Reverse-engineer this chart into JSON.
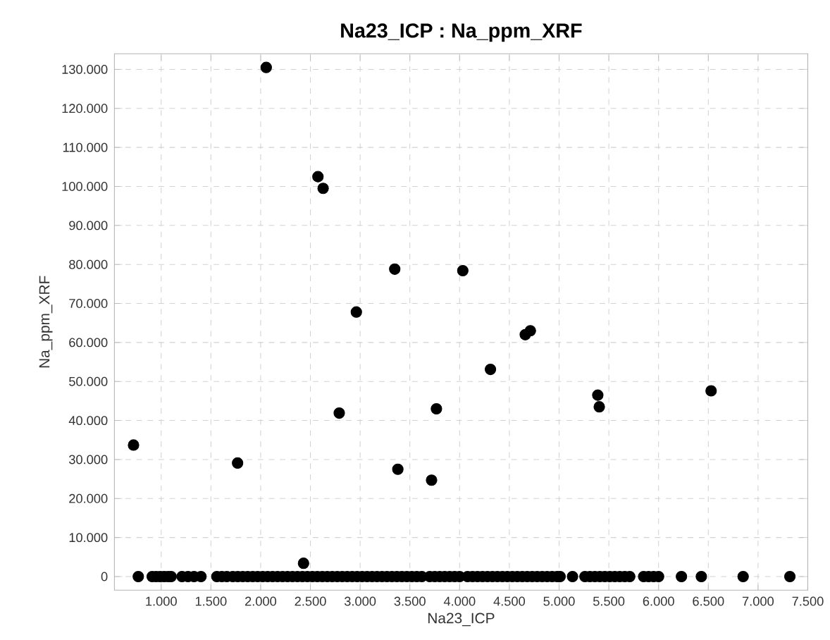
{
  "chart_data": {
    "type": "scatter",
    "title": "Na23_ICP : Na_ppm_XRF",
    "xlabel": "Na23_ICP",
    "ylabel": "Na_ppm_XRF",
    "series": [
      {
        "color": "#000000",
        "x": [
          2056,
          2576,
          2628,
          3348,
          4032,
          2962,
          4660,
          4711,
          4310,
          5389,
          5404,
          6528,
          2790,
          3767,
          722,
          1768,
          3379,
          2431,
          3718,
          770,
          910,
          950,
          990,
          1030,
          1070,
          1100,
          1210,
          1270,
          1330,
          1400,
          1560,
          1610,
          1660,
          1720,
          1770,
          1820,
          1870,
          1920,
          1970,
          2020,
          2070,
          2120,
          2170,
          2220,
          2270,
          2320,
          2370,
          2420,
          2470,
          2520,
          2570,
          2620,
          2670,
          2720,
          2770,
          2820,
          2870,
          2920,
          2970,
          3020,
          3070,
          3120,
          3170,
          3220,
          3270,
          3320,
          3370,
          3420,
          3470,
          3520,
          3570,
          3620,
          3700,
          3750,
          3800,
          3850,
          3900,
          3950,
          4000,
          4080,
          4130,
          4180,
          4230,
          4280,
          4330,
          4380,
          4430,
          4480,
          4530,
          4580,
          4630,
          4680,
          4730,
          4780,
          4830,
          4880,
          4930,
          4980,
          5010,
          5135,
          5260,
          5310,
          5360,
          5410,
          5460,
          5510,
          5560,
          5610,
          5660,
          5710,
          5850,
          5900,
          5950,
          6000,
          6230,
          6430,
          6850,
          7320
        ],
        "values": [
          130500,
          102500,
          99500,
          78800,
          78400,
          67800,
          62000,
          63000,
          53100,
          46500,
          43500,
          47600,
          41900,
          43000,
          33700,
          29100,
          27500,
          3400,
          24700,
          0,
          0,
          0,
          0,
          0,
          0,
          0,
          0,
          0,
          0,
          0,
          0,
          0,
          0,
          0,
          0,
          0,
          0,
          0,
          0,
          0,
          0,
          0,
          0,
          0,
          0,
          0,
          0,
          0,
          0,
          0,
          0,
          0,
          0,
          0,
          0,
          0,
          0,
          0,
          0,
          0,
          0,
          0,
          0,
          0,
          0,
          0,
          0,
          0,
          0,
          0,
          0,
          0,
          0,
          0,
          0,
          0,
          0,
          0,
          0,
          0,
          0,
          0,
          0,
          0,
          0,
          0,
          0,
          0,
          0,
          0,
          0,
          0,
          0,
          0,
          0,
          0,
          0,
          0,
          0,
          0,
          0,
          0,
          0,
          0,
          0,
          0,
          0,
          0,
          0,
          0,
          0,
          0,
          0,
          0,
          0,
          0,
          0,
          0
        ]
      }
    ],
    "xlim": [
      530,
      7500
    ],
    "ylim": [
      -3500,
      134000
    ],
    "xticks": [
      {
        "value": 1000,
        "label": "1.000"
      },
      {
        "value": 1500,
        "label": "1.500"
      },
      {
        "value": 2000,
        "label": "2.000"
      },
      {
        "value": 2500,
        "label": "2.500"
      },
      {
        "value": 3000,
        "label": "3.000"
      },
      {
        "value": 3500,
        "label": "3.500"
      },
      {
        "value": 4000,
        "label": "4.000"
      },
      {
        "value": 4500,
        "label": "4.500"
      },
      {
        "value": 5000,
        "label": "5.000"
      },
      {
        "value": 5500,
        "label": "5.500"
      },
      {
        "value": 6000,
        "label": "6.000"
      },
      {
        "value": 6500,
        "label": "6.500"
      },
      {
        "value": 7000,
        "label": "7.000"
      },
      {
        "value": 7500,
        "label": "7.500"
      }
    ],
    "yticks": [
      0,
      {
        "value": 10000,
        "label": "10.000"
      },
      {
        "value": 20000,
        "label": "20.000"
      },
      {
        "value": 30000,
        "label": "30.000"
      },
      {
        "value": 40000,
        "label": "40.000"
      },
      {
        "value": 50000,
        "label": "50.000"
      },
      {
        "value": 60000,
        "label": "60.000"
      },
      {
        "value": 70000,
        "label": "70.000"
      },
      {
        "value": 80000,
        "label": "80.000"
      },
      {
        "value": 90000,
        "label": "90.000"
      },
      {
        "value": 100000,
        "label": "100.000"
      },
      {
        "value": 110000,
        "label": "110.000"
      },
      {
        "value": 120000,
        "label": "120.000"
      },
      {
        "value": 130000,
        "label": "130.000"
      }
    ],
    "grid": true,
    "marker": "circle"
  }
}
